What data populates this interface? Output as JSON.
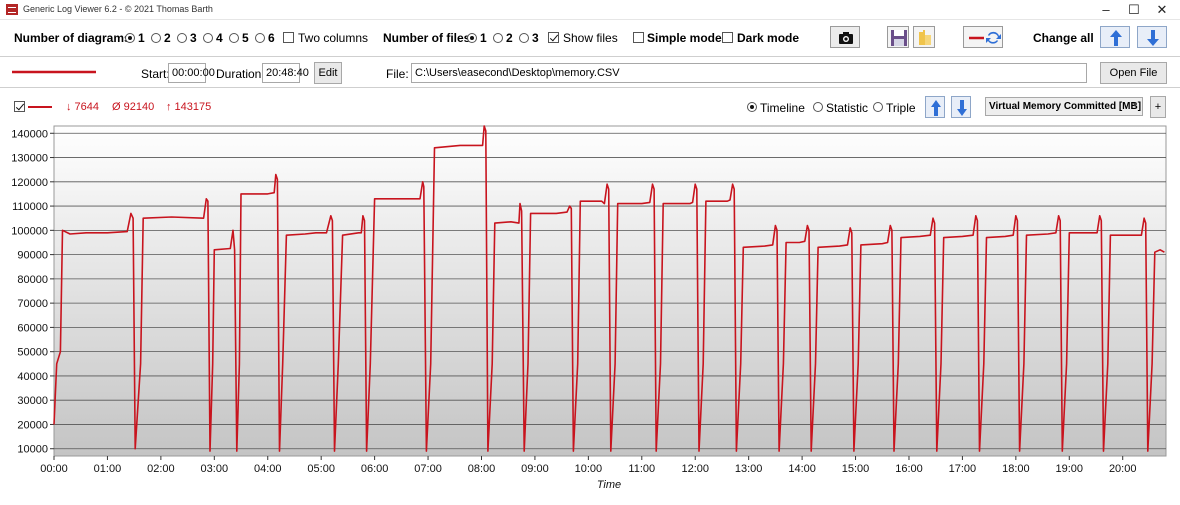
{
  "window": {
    "title": "Generic Log Viewer 6.2 - © 2021 Thomas Barth",
    "minimize": "–",
    "maximize": "☐",
    "close": "✕"
  },
  "toolbar": {
    "diagrams_label": "Number of diagrams",
    "diagram_options": [
      "1",
      "2",
      "3",
      "4",
      "5",
      "6"
    ],
    "diagrams_selected": "1",
    "two_columns_label": "Two columns",
    "files_label": "Number of files",
    "file_options": [
      "1",
      "2",
      "3"
    ],
    "files_selected": "1",
    "show_files_label": "Show files",
    "simple_mode_label": "Simple mode",
    "dark_mode_label": "Dark mode",
    "change_all_label": "Change all"
  },
  "file_row": {
    "start_label": "Start:",
    "start_value": "00:00:00",
    "duration_label": "Duration:",
    "duration_value": "20:48:40",
    "edit_label": "Edit",
    "file_label": "File:",
    "file_path": "C:\\Users\\easecond\\Desktop\\memory.CSV",
    "open_file_label": "Open File"
  },
  "series_bar": {
    "min_text": "↓ 7644",
    "avg_text": "Ø 92140",
    "max_text": "↑ 143175",
    "view_options": [
      "Timeline",
      "Statistic",
      "Triple"
    ],
    "view_selected": "Timeline",
    "metric_selected": "Virtual Memory Committed [MB]",
    "add_label": "+"
  },
  "colors": {
    "series": "#c8141e",
    "accent_blue": "#2f6fd6"
  },
  "chart_data": {
    "type": "line",
    "xlabel": "Time",
    "x_ticks": [
      "00:00",
      "01:00",
      "02:00",
      "03:00",
      "04:00",
      "05:00",
      "06:00",
      "07:00",
      "08:00",
      "09:00",
      "10:00",
      "11:00",
      "12:00",
      "13:00",
      "14:00",
      "15:00",
      "16:00",
      "17:00",
      "18:00",
      "19:00",
      "20:00"
    ],
    "y_ticks": [
      10000,
      20000,
      30000,
      40000,
      50000,
      60000,
      70000,
      80000,
      90000,
      100000,
      110000,
      120000,
      130000,
      140000
    ],
    "xlim_hours": [
      0,
      20.81
    ],
    "ylim": [
      7000,
      143000
    ],
    "grid": true,
    "series": [
      {
        "points": [
          [
            0,
            20000
          ],
          [
            0.05,
            45000
          ],
          [
            0.12,
            50000
          ],
          [
            0.16,
            100000
          ],
          [
            0.3,
            98500
          ],
          [
            0.6,
            99000
          ],
          [
            1.0,
            99000
          ],
          [
            1.37,
            99500
          ],
          [
            1.44,
            107000
          ],
          [
            1.48,
            105000
          ],
          [
            1.52,
            10000
          ],
          [
            1.62,
            45000
          ],
          [
            1.67,
            105000
          ],
          [
            2.2,
            105500
          ],
          [
            2.8,
            105000
          ],
          [
            2.85,
            113000
          ],
          [
            2.88,
            112000
          ],
          [
            2.92,
            9000
          ],
          [
            2.97,
            45000
          ],
          [
            3.0,
            92000
          ],
          [
            3.3,
            92500
          ],
          [
            3.35,
            100000
          ],
          [
            3.38,
            92000
          ],
          [
            3.42,
            9000
          ],
          [
            3.47,
            45000
          ],
          [
            3.5,
            115000
          ],
          [
            4.0,
            115000
          ],
          [
            4.12,
            115500
          ],
          [
            4.15,
            123000
          ],
          [
            4.18,
            121000
          ],
          [
            4.22,
            9000
          ],
          [
            4.28,
            45000
          ],
          [
            4.35,
            98000
          ],
          [
            4.7,
            98500
          ],
          [
            4.9,
            99000
          ],
          [
            5.1,
            99000
          ],
          [
            5.18,
            106000
          ],
          [
            5.21,
            104000
          ],
          [
            5.25,
            9000
          ],
          [
            5.32,
            45000
          ],
          [
            5.4,
            98000
          ],
          [
            5.7,
            99000
          ],
          [
            5.75,
            99000
          ],
          [
            5.78,
            106000
          ],
          [
            5.81,
            104000
          ],
          [
            5.85,
            9000
          ],
          [
            5.92,
            45000
          ],
          [
            6.0,
            113000
          ],
          [
            6.5,
            113000
          ],
          [
            6.85,
            113000
          ],
          [
            6.9,
            120000
          ],
          [
            6.92,
            118000
          ],
          [
            6.97,
            9000
          ],
          [
            7.05,
            45000
          ],
          [
            7.12,
            134000
          ],
          [
            7.6,
            135000
          ],
          [
            7.9,
            135000
          ],
          [
            8.02,
            135000
          ],
          [
            8.05,
            143000
          ],
          [
            8.08,
            141000
          ],
          [
            8.12,
            9000
          ],
          [
            8.2,
            45000
          ],
          [
            8.25,
            103000
          ],
          [
            8.55,
            103500
          ],
          [
            8.7,
            103000
          ],
          [
            8.72,
            111000
          ],
          [
            8.75,
            108000
          ],
          [
            8.8,
            9000
          ],
          [
            8.87,
            45000
          ],
          [
            8.92,
            107000
          ],
          [
            9.4,
            107000
          ],
          [
            9.6,
            107500
          ],
          [
            9.65,
            110000
          ],
          [
            9.68,
            109000
          ],
          [
            9.72,
            9000
          ],
          [
            9.8,
            45000
          ],
          [
            9.85,
            112000
          ],
          [
            10.2,
            112000
          ],
          [
            10.25,
            112000
          ],
          [
            10.3,
            111000
          ],
          [
            10.35,
            119000
          ],
          [
            10.38,
            117000
          ],
          [
            10.42,
            9000
          ],
          [
            10.5,
            45000
          ],
          [
            10.55,
            111000
          ],
          [
            11.0,
            111000
          ],
          [
            11.15,
            111500
          ],
          [
            11.2,
            119000
          ],
          [
            11.23,
            117000
          ],
          [
            11.27,
            9000
          ],
          [
            11.35,
            45000
          ],
          [
            11.4,
            111000
          ],
          [
            11.9,
            111000
          ],
          [
            11.95,
            111500
          ],
          [
            12.0,
            119000
          ],
          [
            12.03,
            117000
          ],
          [
            12.07,
            9000
          ],
          [
            12.15,
            45000
          ],
          [
            12.2,
            112000
          ],
          [
            12.6,
            112000
          ],
          [
            12.65,
            112500
          ],
          [
            12.7,
            119000
          ],
          [
            12.73,
            117000
          ],
          [
            12.77,
            9000
          ],
          [
            12.85,
            45000
          ],
          [
            12.9,
            93000
          ],
          [
            13.3,
            93500
          ],
          [
            13.45,
            94000
          ],
          [
            13.5,
            102000
          ],
          [
            13.53,
            100000
          ],
          [
            13.57,
            9000
          ],
          [
            13.65,
            45000
          ],
          [
            13.7,
            95000
          ],
          [
            13.95,
            95000
          ],
          [
            14.05,
            95500
          ],
          [
            14.1,
            102000
          ],
          [
            14.13,
            100000
          ],
          [
            14.17,
            9000
          ],
          [
            14.25,
            45000
          ],
          [
            14.3,
            93000
          ],
          [
            14.7,
            93500
          ],
          [
            14.85,
            94000
          ],
          [
            14.9,
            101000
          ],
          [
            14.93,
            99000
          ],
          [
            14.97,
            9000
          ],
          [
            15.05,
            45000
          ],
          [
            15.1,
            94000
          ],
          [
            15.5,
            94500
          ],
          [
            15.6,
            95000
          ],
          [
            15.65,
            102000
          ],
          [
            15.68,
            100000
          ],
          [
            15.72,
            9000
          ],
          [
            15.8,
            45000
          ],
          [
            15.85,
            97000
          ],
          [
            16.2,
            97500
          ],
          [
            16.4,
            98000
          ],
          [
            16.45,
            105000
          ],
          [
            16.48,
            103000
          ],
          [
            16.52,
            9000
          ],
          [
            16.6,
            45000
          ],
          [
            16.65,
            97000
          ],
          [
            17.0,
            97500
          ],
          [
            17.2,
            98000
          ],
          [
            17.25,
            106000
          ],
          [
            17.28,
            104000
          ],
          [
            17.32,
            9000
          ],
          [
            17.4,
            45000
          ],
          [
            17.45,
            97000
          ],
          [
            17.8,
            97500
          ],
          [
            17.95,
            98000
          ],
          [
            18.0,
            106000
          ],
          [
            18.03,
            104000
          ],
          [
            18.07,
            9000
          ],
          [
            18.15,
            45000
          ],
          [
            18.2,
            98000
          ],
          [
            18.6,
            98500
          ],
          [
            18.75,
            99000
          ],
          [
            18.8,
            106000
          ],
          [
            18.83,
            104000
          ],
          [
            18.87,
            9000
          ],
          [
            18.95,
            45000
          ],
          [
            19.0,
            99000
          ],
          [
            19.4,
            99000
          ],
          [
            19.52,
            99000
          ],
          [
            19.57,
            106000
          ],
          [
            19.6,
            104000
          ],
          [
            19.64,
            9000
          ],
          [
            19.72,
            45000
          ],
          [
            19.77,
            98000
          ],
          [
            20.2,
            98000
          ],
          [
            20.35,
            98000
          ],
          [
            20.4,
            105000
          ],
          [
            20.43,
            103000
          ],
          [
            20.47,
            9000
          ],
          [
            20.55,
            45000
          ],
          [
            20.6,
            91000
          ],
          [
            20.7,
            92000
          ],
          [
            20.78,
            91000
          ]
        ]
      }
    ]
  }
}
